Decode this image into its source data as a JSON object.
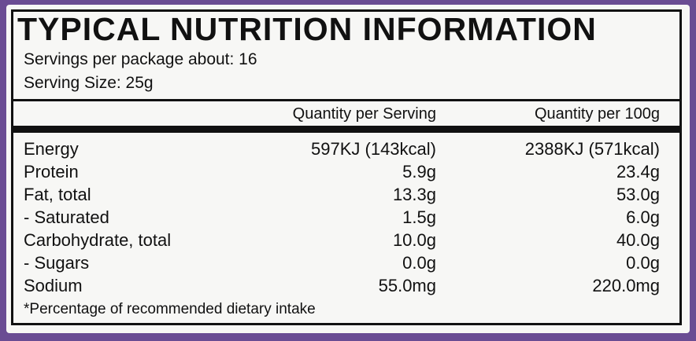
{
  "header": {
    "title": "TYPICAL NUTRITION INFORMATION",
    "servings": "Servings per package about: 16",
    "serving_size": "Serving Size: 25g"
  },
  "table": {
    "columns": [
      "Quantity per Serving",
      "Quantity per 100g"
    ],
    "rows": [
      [
        "Energy",
        "597KJ (143kcal)",
        "2388KJ (571kcal)"
      ],
      [
        "Protein",
        "5.9g",
        "23.4g"
      ],
      [
        "Fat, total",
        "13.3g",
        "53.0g"
      ],
      [
        "- Saturated",
        "1.5g",
        "6.0g"
      ],
      [
        "Carbohydrate, total",
        "10.0g",
        "40.0g"
      ],
      [
        "- Sugars",
        "0.0g",
        "0.0g"
      ],
      [
        "Sodium",
        "55.0mg",
        "220.0mg"
      ]
    ]
  },
  "footnote": "*Percentage of recommended dietary intake"
}
